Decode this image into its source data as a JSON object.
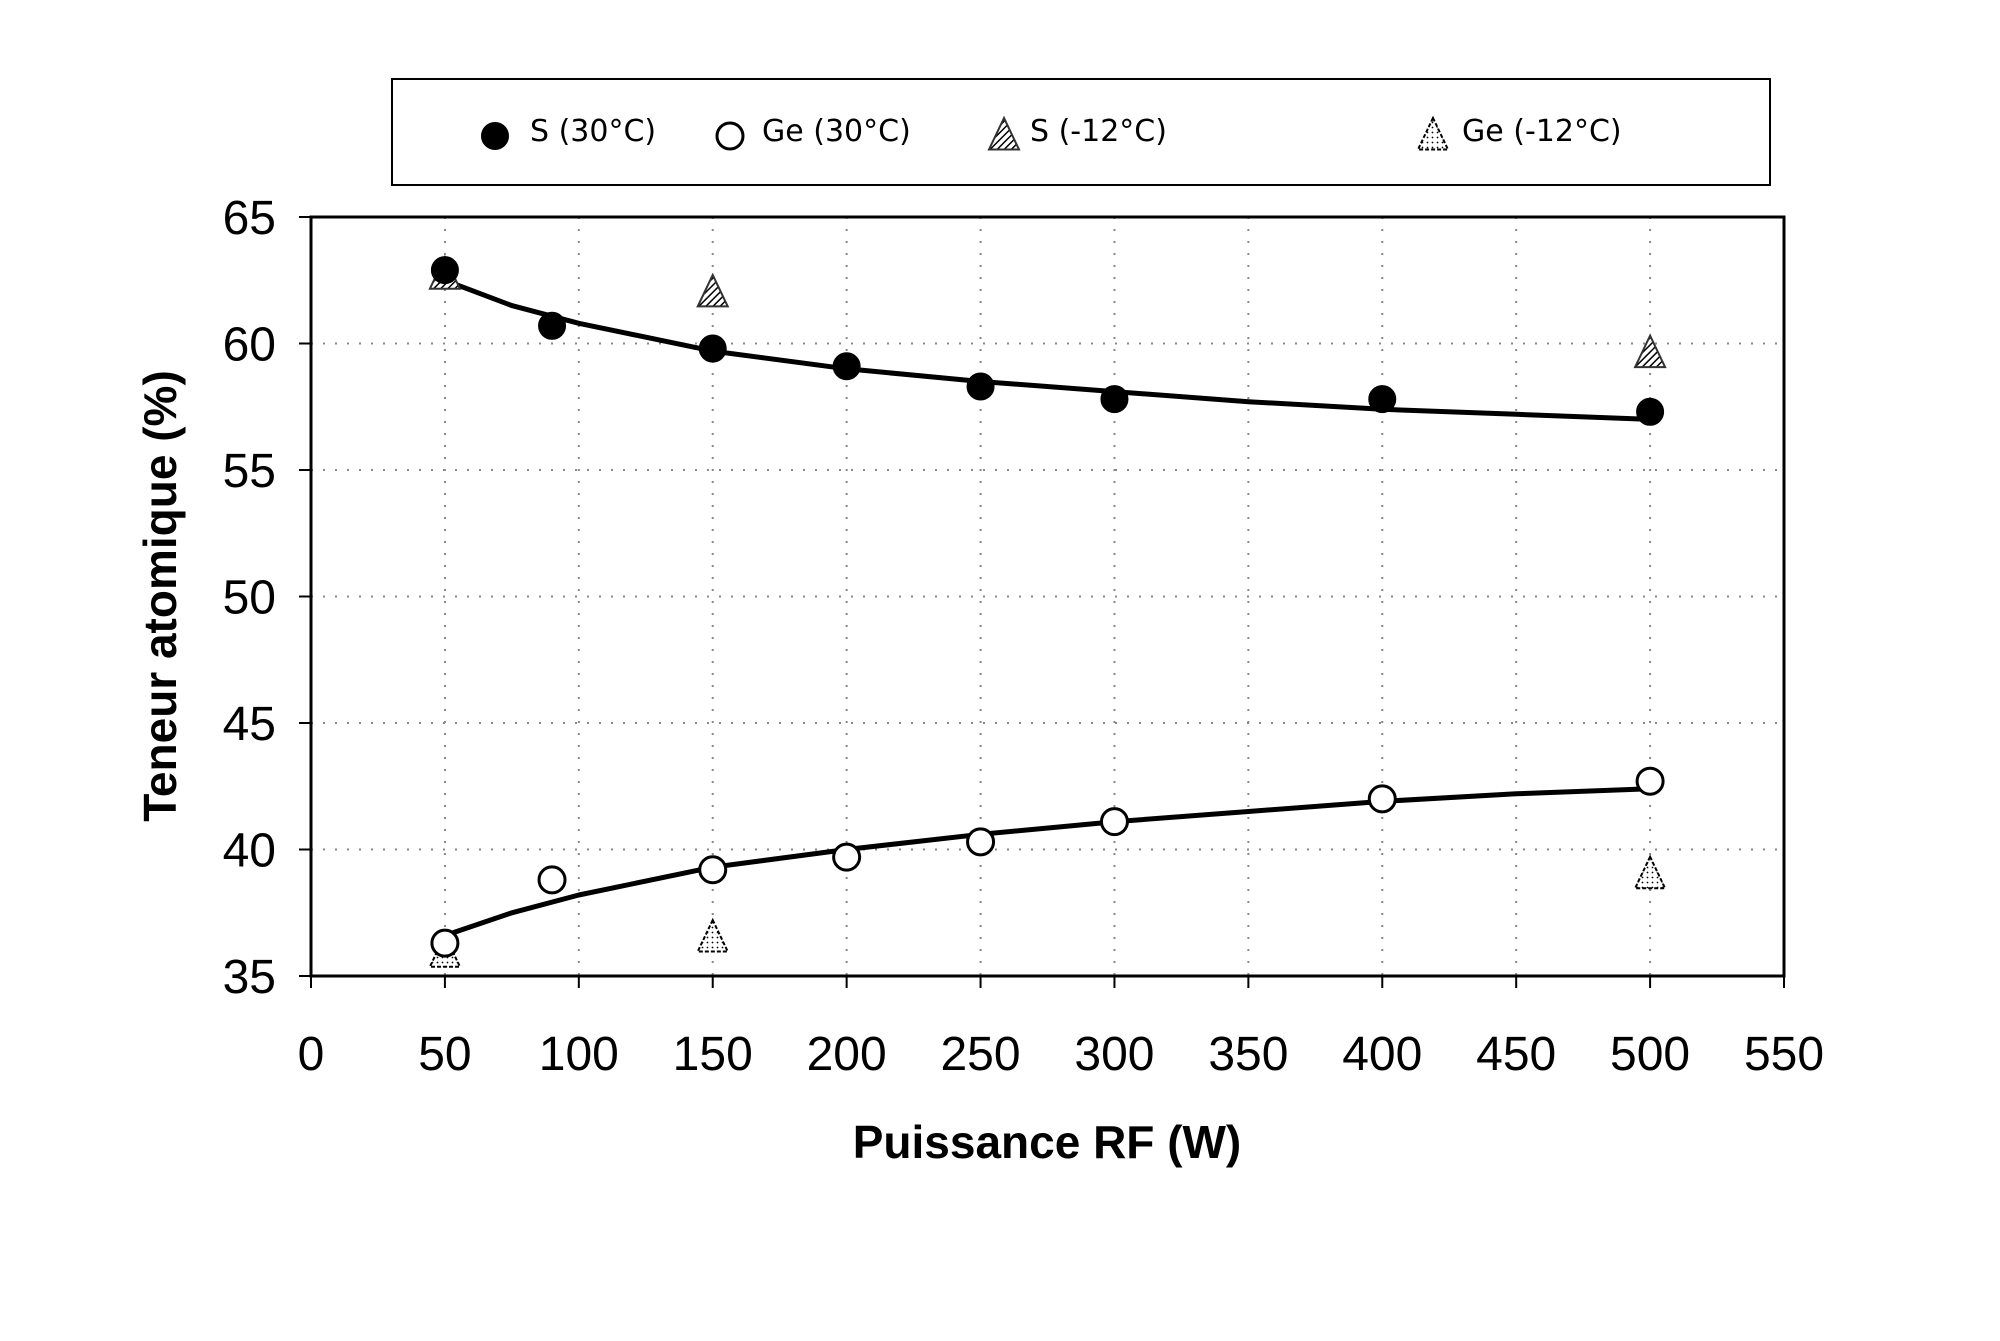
{
  "chart_data": {
    "type": "scatter",
    "xlabel": "Puissance RF (W)",
    "ylabel": "Teneur atomique (%)",
    "xlim": [
      0,
      550
    ],
    "ylim": [
      35,
      65
    ],
    "xticks": [
      "0",
      "50",
      "100",
      "150",
      "200",
      "250",
      "300",
      "350",
      "400",
      "450",
      "500",
      "550"
    ],
    "yticks": [
      "35",
      "40",
      "45",
      "50",
      "55",
      "60",
      "65"
    ],
    "grid": "dotted",
    "legend_position": "top",
    "series": [
      {
        "name": "S (30°C)",
        "marker": "filled-circle",
        "color": "#000000",
        "points": [
          [
            50,
            62.9
          ],
          [
            90,
            60.7
          ],
          [
            150,
            59.8
          ],
          [
            200,
            59.1
          ],
          [
            250,
            58.3
          ],
          [
            300,
            57.8
          ],
          [
            400,
            57.8
          ],
          [
            500,
            57.3
          ]
        ],
        "trend": [
          [
            50,
            62.5
          ],
          [
            75,
            61.5
          ],
          [
            100,
            60.8
          ],
          [
            150,
            59.7
          ],
          [
            200,
            59.0
          ],
          [
            250,
            58.5
          ],
          [
            300,
            58.1
          ],
          [
            350,
            57.7
          ],
          [
            400,
            57.4
          ],
          [
            450,
            57.2
          ],
          [
            500,
            57.0
          ]
        ]
      },
      {
        "name": "Ge (30°C)",
        "marker": "open-circle",
        "color": "#000000",
        "points": [
          [
            50,
            36.3
          ],
          [
            90,
            38.8
          ],
          [
            150,
            39.2
          ],
          [
            200,
            39.7
          ],
          [
            250,
            40.3
          ],
          [
            300,
            41.1
          ],
          [
            400,
            42.0
          ],
          [
            500,
            42.7
          ]
        ],
        "trend": [
          [
            50,
            36.6
          ],
          [
            75,
            37.5
          ],
          [
            100,
            38.2
          ],
          [
            150,
            39.3
          ],
          [
            200,
            40.0
          ],
          [
            250,
            40.6
          ],
          [
            300,
            41.1
          ],
          [
            350,
            41.5
          ],
          [
            400,
            41.9
          ],
          [
            450,
            42.2
          ],
          [
            500,
            42.4
          ]
        ]
      },
      {
        "name": "S (-12°C)",
        "marker": "hatched-triangle",
        "color": "#555555",
        "points": [
          [
            50,
            62.7
          ],
          [
            150,
            62.0
          ],
          [
            500,
            59.6
          ]
        ]
      },
      {
        "name": "Ge (-12°C)",
        "marker": "open-triangle",
        "color": "#000000",
        "points": [
          [
            50,
            35.9
          ],
          [
            150,
            36.5
          ],
          [
            500,
            39.0
          ]
        ]
      }
    ]
  }
}
